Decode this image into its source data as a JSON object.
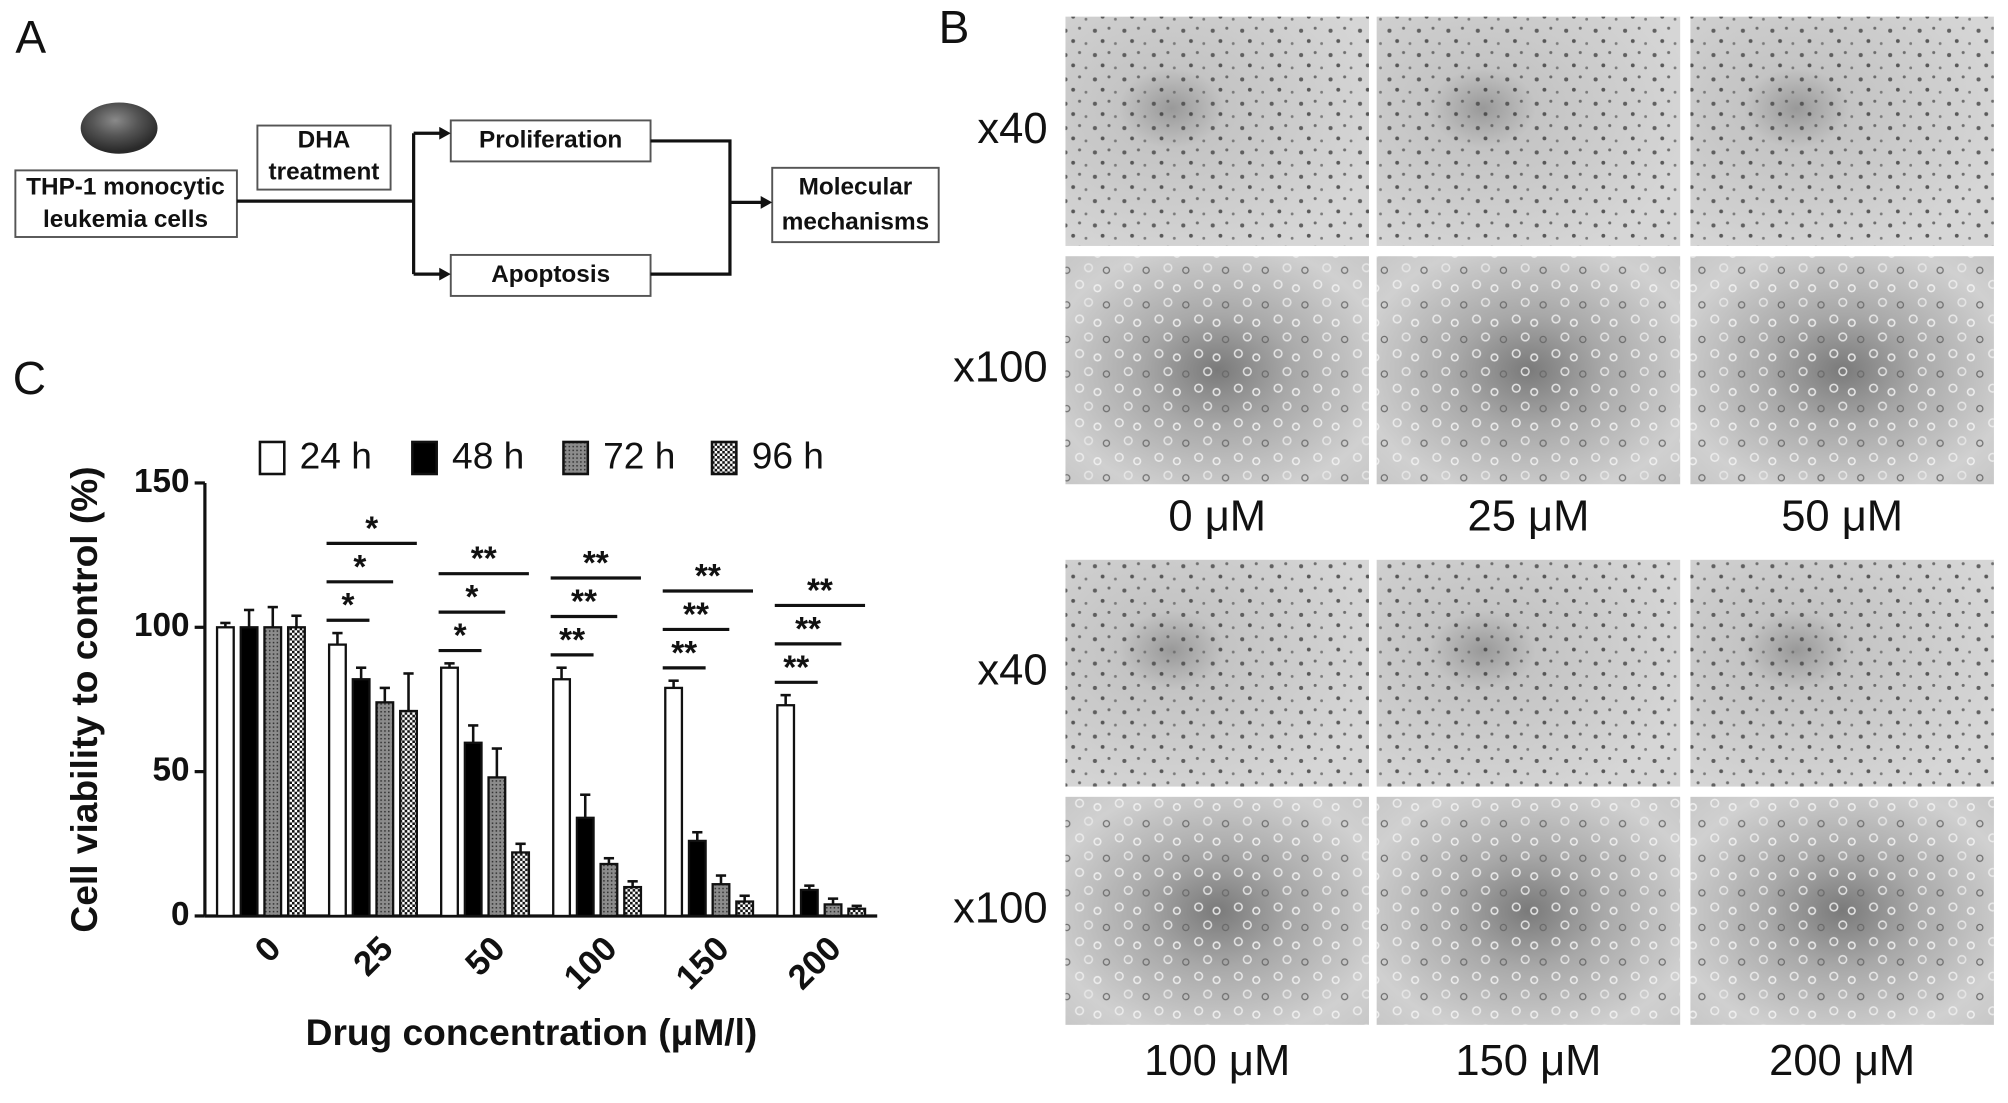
{
  "panel_labels": [
    "A",
    "B",
    "C"
  ],
  "diagram": {
    "nodes": [
      {
        "label": [
          "THP-1 monocytic",
          "leukemia cells"
        ]
      },
      {
        "label": [
          "DHA",
          "treatment"
        ]
      },
      {
        "label": [
          "Proliferation"
        ]
      },
      {
        "label": [
          "Apoptosis"
        ]
      },
      {
        "label": [
          "Molecular",
          "mechanisms"
        ]
      }
    ]
  },
  "micrographs": {
    "magnifications": [
      "x40",
      "x100",
      "x40",
      "x100"
    ],
    "concentrations": [
      "0 μM",
      "25 μM",
      "50 μM",
      "100 μM",
      "150 μM",
      "200 μM"
    ]
  },
  "chart_data": {
    "type": "bar",
    "xlabel": "Drug concentration (μM/l)",
    "ylabel": "Cell viability to control (%)",
    "categories": [
      "0",
      "25",
      "50",
      "100",
      "150",
      "200"
    ],
    "series": [
      {
        "name": "24 h",
        "color": "#ffffff",
        "pattern": null,
        "values": [
          100,
          94,
          86,
          82,
          79,
          73
        ],
        "errors": [
          1.5,
          4,
          1.5,
          4,
          2.5,
          3.5
        ]
      },
      {
        "name": "48 h",
        "color": "#000000",
        "pattern": null,
        "values": [
          100,
          82,
          60,
          34,
          26,
          9
        ],
        "errors": [
          6,
          4,
          6,
          8,
          3,
          1.5
        ]
      },
      {
        "name": "72 h",
        "color": "#8c8c8c",
        "pattern": "dots",
        "values": [
          100,
          74,
          48,
          18,
          11,
          4
        ],
        "errors": [
          7,
          5,
          10,
          2,
          3,
          2
        ]
      },
      {
        "name": "96 h",
        "color": "#ffffff",
        "pattern": "checker",
        "values": [
          100,
          71,
          22,
          10,
          5,
          2.5
        ],
        "errors": [
          4,
          13,
          3,
          2,
          2,
          1
        ]
      }
    ],
    "significance": [
      null,
      [
        "*",
        "*",
        "*"
      ],
      [
        "*",
        "*",
        "**"
      ],
      [
        "**",
        "**",
        "**"
      ],
      [
        "**",
        "**",
        "**"
      ],
      [
        "**",
        "**",
        "**"
      ]
    ],
    "ylim": [
      0,
      150
    ],
    "yticks": [
      0,
      50,
      100,
      150
    ]
  }
}
